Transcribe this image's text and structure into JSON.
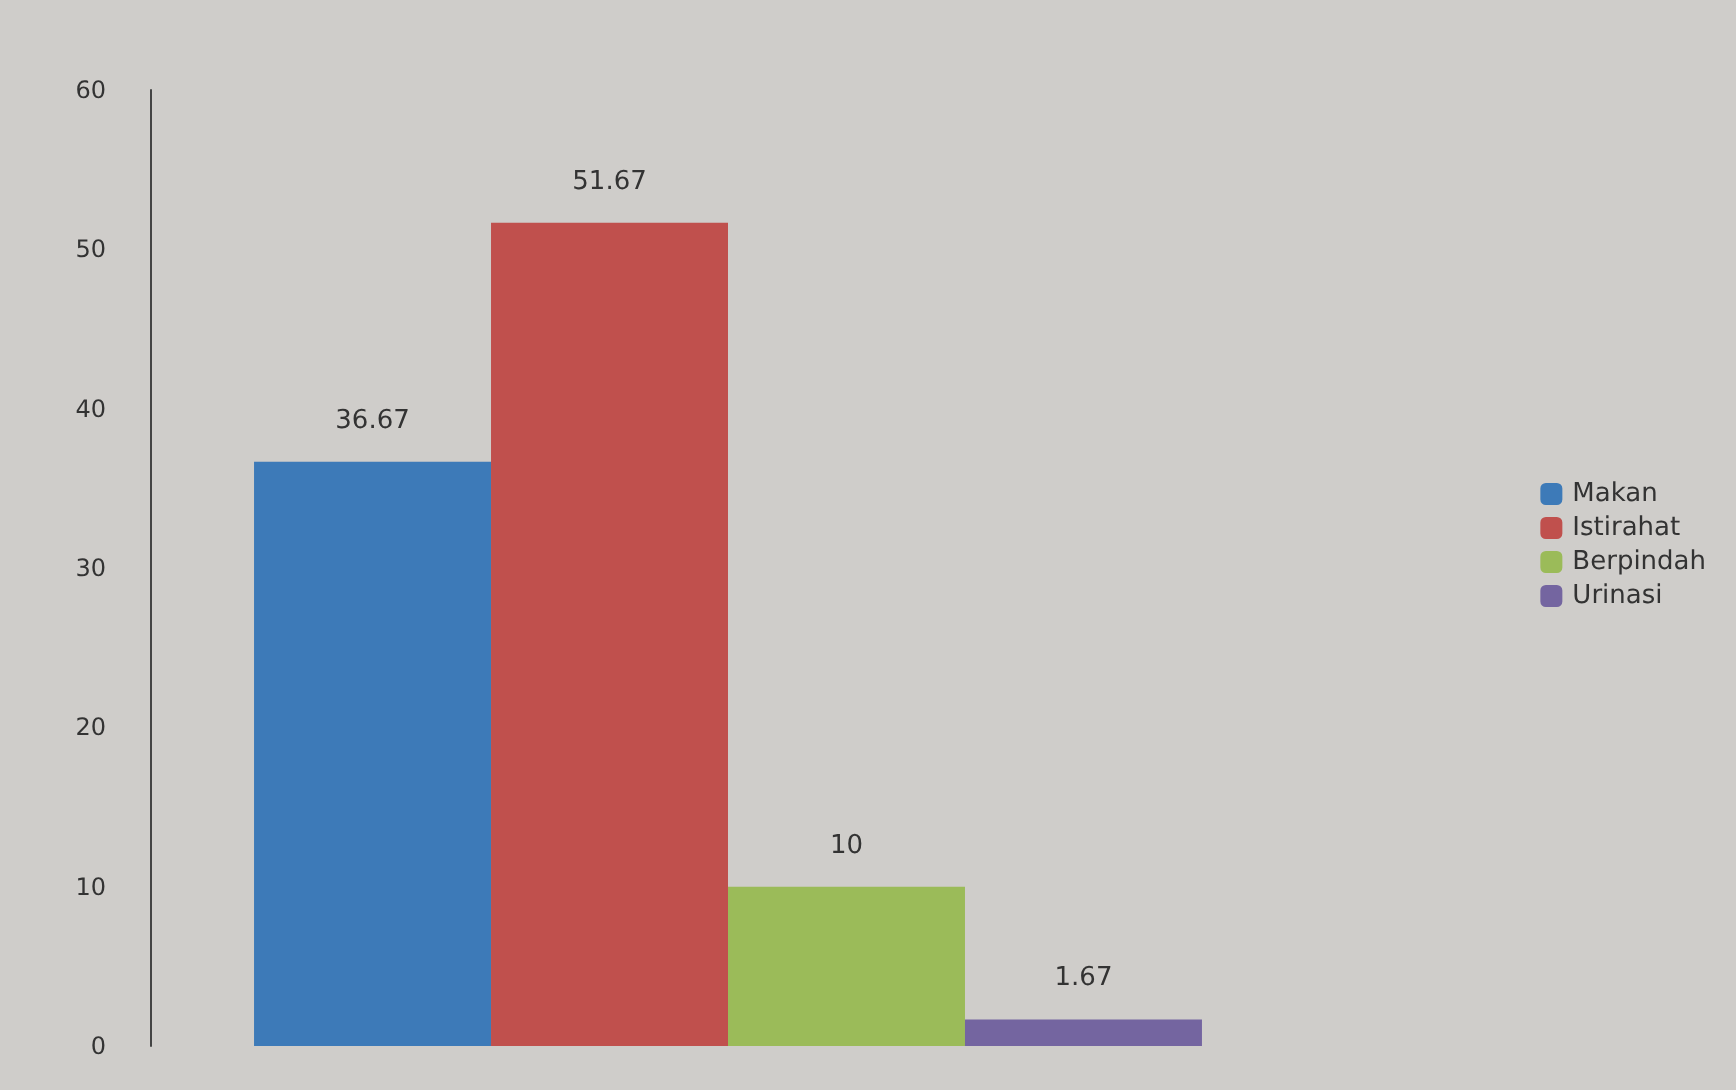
{
  "chart_data": {
    "type": "bar",
    "categories": [
      null
    ],
    "series": [
      {
        "name": "Makan",
        "color": "#3d7ab8",
        "values": [
          36.67
        ]
      },
      {
        "name": "Istirahat",
        "color": "#c0504d",
        "values": [
          51.67
        ]
      },
      {
        "name": "Berpindah",
        "color": "#9bbb59",
        "values": [
          10
        ]
      },
      {
        "name": "Urinasi",
        "color": "#7465a0",
        "values": [
          1.67
        ]
      }
    ],
    "ylim": [
      0,
      60
    ],
    "yticks": [
      0,
      10,
      20,
      30,
      40,
      50,
      60
    ],
    "grid": false,
    "legend": "right",
    "data_labels": true
  }
}
